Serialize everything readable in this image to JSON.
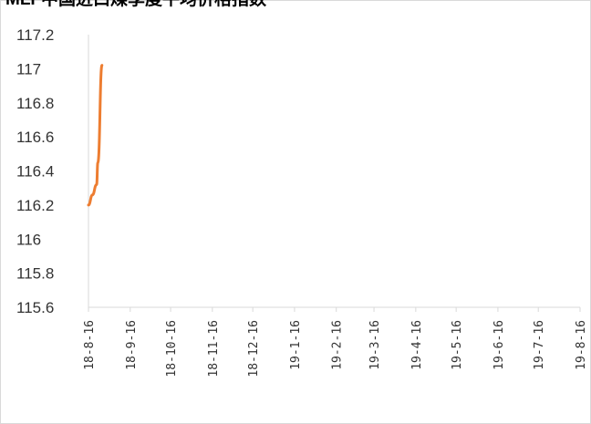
{
  "chart_data": {
    "type": "line",
    "title": "MLF中国进口煤季度平均价格指数",
    "xlabel": "",
    "ylabel": "",
    "ylim": [
      115.6,
      117.2
    ],
    "yticks": [
      "117.2",
      "117",
      "116.8",
      "116.6",
      "116.4",
      "116.2",
      "116",
      "115.8",
      "115.6"
    ],
    "categories": [
      "18-8-16",
      "18-9-16",
      "18-10-16",
      "18-11-16",
      "18-12-16",
      "19-1-16",
      "19-2-16",
      "19-3-16",
      "19-4-16",
      "19-5-16",
      "19-6-16",
      "19-7-16",
      "19-8-16"
    ],
    "series": [
      {
        "color": "#ed7d31",
        "x": [
          "18-8-16",
          "18-8-19",
          "18-8-22",
          "18-8-23",
          "18-8-26"
        ],
        "values": [
          116.2,
          116.26,
          116.32,
          116.45,
          117.02
        ]
      }
    ],
    "grid": false,
    "legend": "none"
  }
}
